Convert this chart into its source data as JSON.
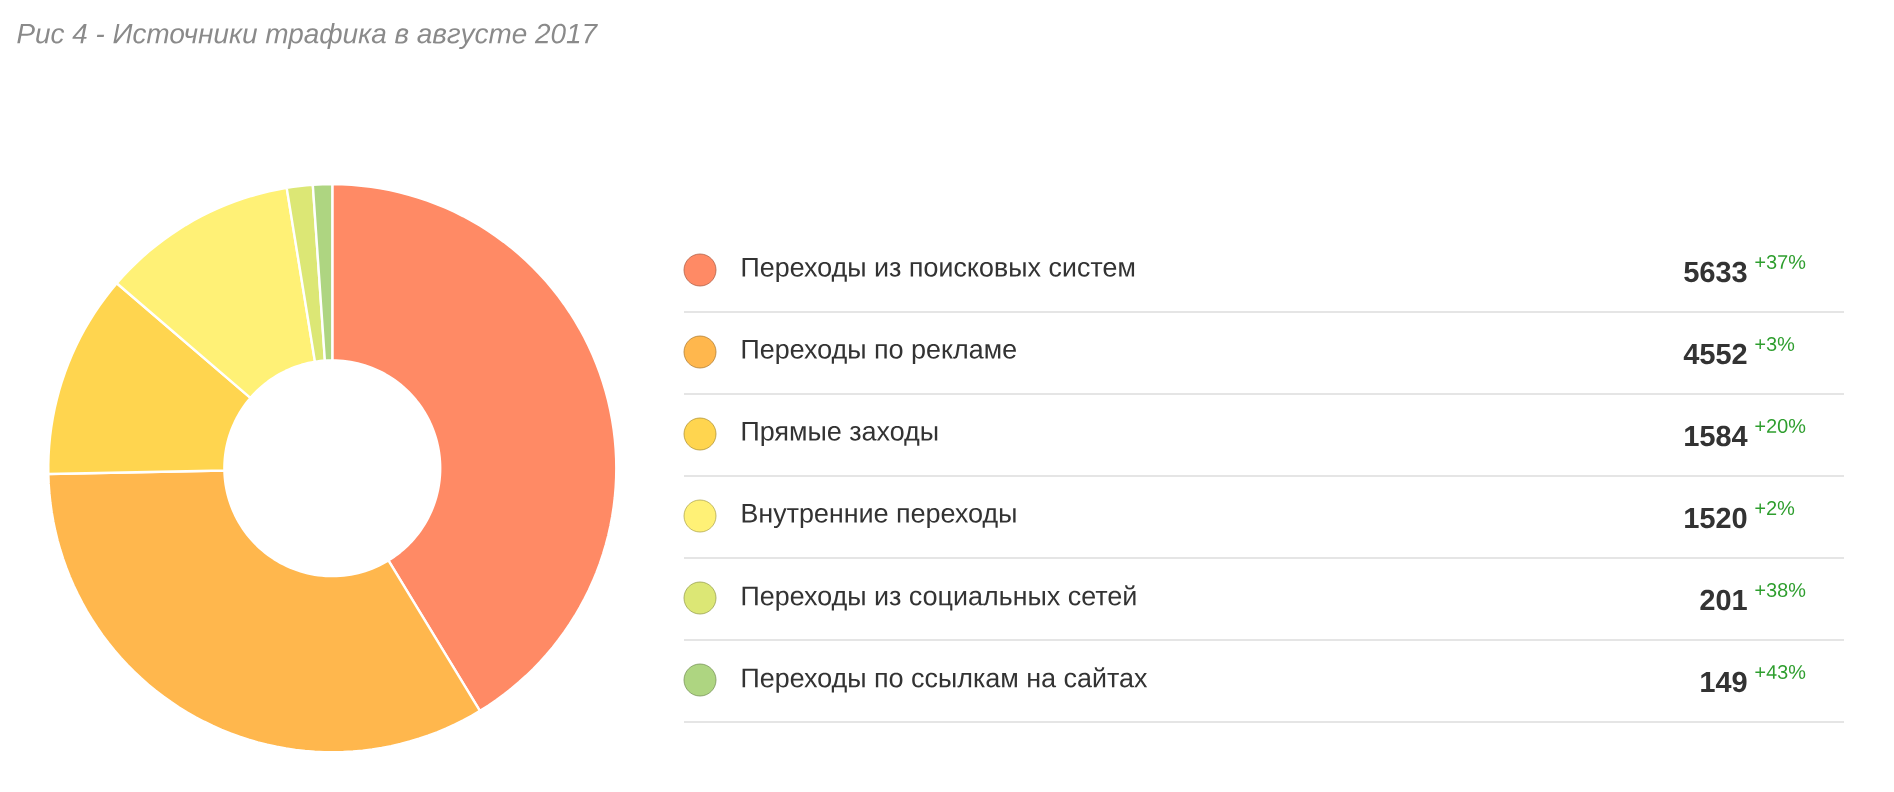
{
  "chart_data": {
    "type": "donut",
    "title": "Рис 4 - Источники трафика в августе 2017",
    "categories": [
      "Переходы из поисковых систем",
      "Переходы по рекламе",
      "Прямые заходы",
      "Внутренние переходы",
      "Переходы из социальных сетей",
      "Переходы по ссылкам на сайтах"
    ],
    "values": [
      5633,
      4552,
      1584,
      1520,
      201,
      149
    ],
    "colors": [
      "#ff8a65",
      "#ffb74d",
      "#ffd54f",
      "#fff176",
      "#dce775",
      "#aed581"
    ],
    "annotations": [
      "+37%",
      "+3%",
      "+20%",
      "+2%",
      "+38%",
      "+43%"
    ],
    "data_labels": true,
    "legend": "right"
  }
}
